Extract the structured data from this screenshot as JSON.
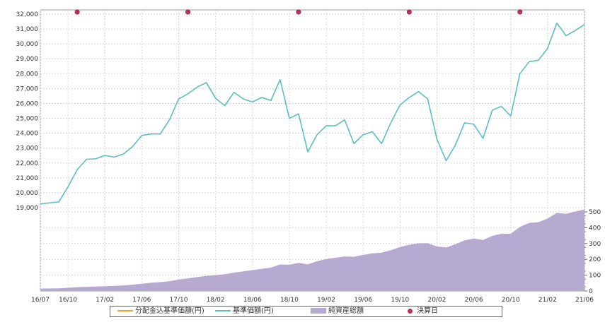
{
  "chart_data": {
    "type": "line",
    "x_ticks": [
      "16/07",
      "16/10",
      "17/02",
      "17/06",
      "17/10",
      "18/02",
      "18/06",
      "18/10",
      "19/02",
      "19/06",
      "19/10",
      "20/02",
      "20/06",
      "20/10",
      "21/02",
      "21/06"
    ],
    "y_left_ticks": [
      "19,000",
      "20,000",
      "21,000",
      "22,000",
      "23,000",
      "24,000",
      "25,000",
      "26,000",
      "27,000",
      "28,000",
      "29,000",
      "30,000",
      "31,000",
      "32,000"
    ],
    "y_left_range": [
      19000,
      32000
    ],
    "y_right_ticks": [
      "0",
      "100",
      "200",
      "300",
      "400",
      "500"
    ],
    "y_right_range": [
      0,
      500
    ],
    "grid": true,
    "legend_position": "bottom",
    "colors": {
      "nav": "#5bbfbf",
      "dividend_nav": "#f0a030",
      "assets": "#b7aad0",
      "settlement": "#c0305a"
    },
    "legend": [
      {
        "key": "dividend_nav",
        "label": "分配金込基準価額(円)"
      },
      {
        "key": "nav",
        "label": "基準価額(円)"
      },
      {
        "key": "assets",
        "label": "純資産総額"
      },
      {
        "key": "settlement",
        "label": "決算日"
      }
    ],
    "series": [
      {
        "name": "基準価額(円)",
        "key": "nav",
        "axis": "left",
        "values": [
          [
            "2016-07",
            19250
          ],
          [
            "2016-08",
            19320
          ],
          [
            "2016-09",
            19380
          ],
          [
            "2016-10",
            20400
          ],
          [
            "2016-11",
            21550
          ],
          [
            "2016-12",
            22250
          ],
          [
            "2017-01",
            22280
          ],
          [
            "2017-02",
            22500
          ],
          [
            "2017-03",
            22400
          ],
          [
            "2017-04",
            22600
          ],
          [
            "2017-05",
            23100
          ],
          [
            "2017-06",
            23850
          ],
          [
            "2017-07",
            23950
          ],
          [
            "2017-08",
            23950
          ],
          [
            "2017-09",
            24900
          ],
          [
            "2017-10",
            26300
          ],
          [
            "2017-11",
            26650
          ],
          [
            "2017-12",
            27100
          ],
          [
            "2018-01",
            27400
          ],
          [
            "2018-02",
            26350
          ],
          [
            "2018-03",
            25850
          ],
          [
            "2018-04",
            26750
          ],
          [
            "2018-05",
            26300
          ],
          [
            "2018-06",
            26100
          ],
          [
            "2018-07",
            26400
          ],
          [
            "2018-08",
            26200
          ],
          [
            "2018-09",
            27600
          ],
          [
            "2018-10",
            25000
          ],
          [
            "2018-11",
            25300
          ],
          [
            "2018-12",
            22750
          ],
          [
            "2019-01",
            23900
          ],
          [
            "2019-02",
            24500
          ],
          [
            "2019-03",
            24500
          ],
          [
            "2019-04",
            24900
          ],
          [
            "2019-05",
            23300
          ],
          [
            "2019-06",
            23900
          ],
          [
            "2019-07",
            24100
          ],
          [
            "2019-08",
            23300
          ],
          [
            "2019-09",
            24700
          ],
          [
            "2019-10",
            25900
          ],
          [
            "2019-11",
            26400
          ],
          [
            "2019-12",
            26800
          ],
          [
            "2020-01",
            26300
          ],
          [
            "2020-02",
            23600
          ],
          [
            "2020-03",
            22150
          ],
          [
            "2020-04",
            23200
          ],
          [
            "2020-05",
            24700
          ],
          [
            "2020-06",
            24600
          ],
          [
            "2020-07",
            23650
          ],
          [
            "2020-08",
            25550
          ],
          [
            "2020-09",
            25800
          ],
          [
            "2020-10",
            25150
          ],
          [
            "2020-11",
            28000
          ],
          [
            "2020-12",
            28800
          ],
          [
            "2021-01",
            28900
          ],
          [
            "2021-02",
            29700
          ],
          [
            "2021-03",
            31400
          ],
          [
            "2021-04",
            30550
          ],
          [
            "2021-05",
            30900
          ],
          [
            "2021-06",
            31300
          ]
        ]
      },
      {
        "name": "純資産総額",
        "key": "assets",
        "axis": "right",
        "values": [
          [
            "2016-07",
            15
          ],
          [
            "2016-08",
            16
          ],
          [
            "2016-09",
            17
          ],
          [
            "2016-10",
            20
          ],
          [
            "2016-11",
            24
          ],
          [
            "2016-12",
            26
          ],
          [
            "2017-01",
            28
          ],
          [
            "2017-02",
            30
          ],
          [
            "2017-03",
            32
          ],
          [
            "2017-04",
            35
          ],
          [
            "2017-05",
            40
          ],
          [
            "2017-06",
            46
          ],
          [
            "2017-07",
            52
          ],
          [
            "2017-08",
            56
          ],
          [
            "2017-09",
            62
          ],
          [
            "2017-10",
            72
          ],
          [
            "2017-11",
            80
          ],
          [
            "2017-12",
            88
          ],
          [
            "2018-01",
            95
          ],
          [
            "2018-02",
            100
          ],
          [
            "2018-03",
            106
          ],
          [
            "2018-04",
            116
          ],
          [
            "2018-05",
            124
          ],
          [
            "2018-06",
            132
          ],
          [
            "2018-07",
            140
          ],
          [
            "2018-08",
            148
          ],
          [
            "2018-09",
            168
          ],
          [
            "2018-10",
            166
          ],
          [
            "2018-11",
            178
          ],
          [
            "2018-12",
            168
          ],
          [
            "2019-01",
            188
          ],
          [
            "2019-02",
            202
          ],
          [
            "2019-03",
            210
          ],
          [
            "2019-04",
            218
          ],
          [
            "2019-05",
            216
          ],
          [
            "2019-06",
            228
          ],
          [
            "2019-07",
            238
          ],
          [
            "2019-08",
            242
          ],
          [
            "2019-09",
            258
          ],
          [
            "2019-10",
            278
          ],
          [
            "2019-11",
            292
          ],
          [
            "2019-12",
            302
          ],
          [
            "2020-01",
            302
          ],
          [
            "2020-02",
            282
          ],
          [
            "2020-03",
            275
          ],
          [
            "2020-04",
            295
          ],
          [
            "2020-05",
            320
          ],
          [
            "2020-06",
            332
          ],
          [
            "2020-07",
            322
          ],
          [
            "2020-08",
            348
          ],
          [
            "2020-09",
            362
          ],
          [
            "2020-10",
            362
          ],
          [
            "2020-11",
            405
          ],
          [
            "2020-12",
            430
          ],
          [
            "2021-01",
            435
          ],
          [
            "2021-02",
            458
          ],
          [
            "2021-03",
            494
          ],
          [
            "2021-04",
            488
          ],
          [
            "2021-05",
            502
          ],
          [
            "2021-06",
            515
          ]
        ]
      },
      {
        "name": "決算日",
        "key": "settlement",
        "values": [
          "2016-11",
          "2017-11",
          "2018-11",
          "2019-11",
          "2020-11"
        ]
      },
      {
        "name": "分配金込基準価額(円)",
        "key": "dividend_nav",
        "axis": "left",
        "values": []
      }
    ]
  }
}
